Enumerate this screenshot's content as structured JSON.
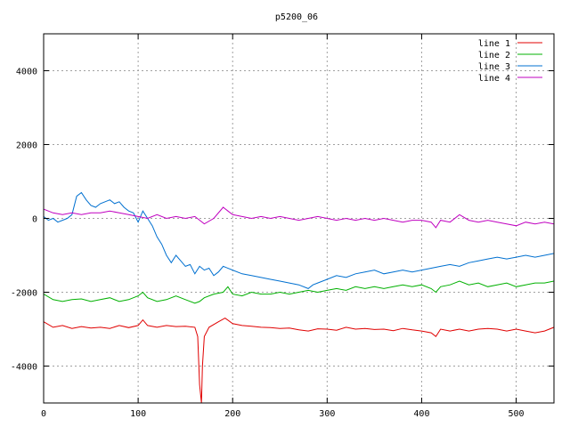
{
  "chart_data": {
    "type": "line",
    "title": "p5200_06",
    "xlabel": "",
    "ylabel": "",
    "xlim": [
      0,
      540
    ],
    "ylim": [
      -5000,
      5000
    ],
    "xticks": [
      0,
      100,
      200,
      300,
      400,
      500
    ],
    "yticks": [
      -4000,
      -2000,
      0,
      2000,
      4000
    ],
    "grid": true,
    "legend_position": "top-right",
    "series": [
      {
        "name": "line 1",
        "color": "#e00000",
        "points": [
          [
            0,
            -2800
          ],
          [
            10,
            -2950
          ],
          [
            20,
            -2900
          ],
          [
            30,
            -2980
          ],
          [
            40,
            -2930
          ],
          [
            50,
            -2970
          ],
          [
            60,
            -2950
          ],
          [
            70,
            -2980
          ],
          [
            80,
            -2900
          ],
          [
            90,
            -2960
          ],
          [
            100,
            -2900
          ],
          [
            105,
            -2750
          ],
          [
            110,
            -2900
          ],
          [
            120,
            -2950
          ],
          [
            130,
            -2900
          ],
          [
            140,
            -2930
          ],
          [
            150,
            -2920
          ],
          [
            160,
            -2950
          ],
          [
            163,
            -3200
          ],
          [
            165,
            -4500
          ],
          [
            167,
            -5000
          ],
          [
            168,
            -4000
          ],
          [
            170,
            -3200
          ],
          [
            175,
            -2950
          ],
          [
            185,
            -2800
          ],
          [
            192,
            -2700
          ],
          [
            200,
            -2850
          ],
          [
            210,
            -2900
          ],
          [
            220,
            -2920
          ],
          [
            230,
            -2950
          ],
          [
            240,
            -2960
          ],
          [
            250,
            -2980
          ],
          [
            260,
            -2970
          ],
          [
            270,
            -3020
          ],
          [
            280,
            -3050
          ],
          [
            290,
            -2990
          ],
          [
            300,
            -3000
          ],
          [
            310,
            -3030
          ],
          [
            320,
            -2950
          ],
          [
            330,
            -3000
          ],
          [
            340,
            -2980
          ],
          [
            350,
            -3010
          ],
          [
            360,
            -3000
          ],
          [
            370,
            -3040
          ],
          [
            380,
            -2980
          ],
          [
            390,
            -3020
          ],
          [
            400,
            -3050
          ],
          [
            410,
            -3100
          ],
          [
            415,
            -3200
          ],
          [
            420,
            -3000
          ],
          [
            430,
            -3050
          ],
          [
            440,
            -3000
          ],
          [
            450,
            -3050
          ],
          [
            460,
            -3000
          ],
          [
            470,
            -2980
          ],
          [
            480,
            -3000
          ],
          [
            490,
            -3050
          ],
          [
            500,
            -3000
          ],
          [
            510,
            -3050
          ],
          [
            520,
            -3100
          ],
          [
            530,
            -3050
          ],
          [
            540,
            -2950
          ]
        ]
      },
      {
        "name": "line 2",
        "color": "#00b000",
        "points": [
          [
            0,
            -2050
          ],
          [
            10,
            -2200
          ],
          [
            20,
            -2250
          ],
          [
            30,
            -2200
          ],
          [
            40,
            -2180
          ],
          [
            50,
            -2250
          ],
          [
            60,
            -2200
          ],
          [
            70,
            -2150
          ],
          [
            80,
            -2250
          ],
          [
            90,
            -2200
          ],
          [
            100,
            -2100
          ],
          [
            105,
            -2000
          ],
          [
            110,
            -2150
          ],
          [
            120,
            -2250
          ],
          [
            130,
            -2200
          ],
          [
            140,
            -2100
          ],
          [
            150,
            -2200
          ],
          [
            160,
            -2300
          ],
          [
            165,
            -2250
          ],
          [
            170,
            -2150
          ],
          [
            180,
            -2050
          ],
          [
            190,
            -2000
          ],
          [
            195,
            -1850
          ],
          [
            200,
            -2050
          ],
          [
            210,
            -2100
          ],
          [
            220,
            -2000
          ],
          [
            230,
            -2050
          ],
          [
            240,
            -2050
          ],
          [
            250,
            -2000
          ],
          [
            260,
            -2050
          ],
          [
            270,
            -2000
          ],
          [
            280,
            -1950
          ],
          [
            290,
            -2000
          ],
          [
            300,
            -1950
          ],
          [
            310,
            -1900
          ],
          [
            320,
            -1950
          ],
          [
            330,
            -1850
          ],
          [
            340,
            -1900
          ],
          [
            350,
            -1850
          ],
          [
            360,
            -1900
          ],
          [
            370,
            -1850
          ],
          [
            380,
            -1800
          ],
          [
            390,
            -1850
          ],
          [
            400,
            -1800
          ],
          [
            410,
            -1900
          ],
          [
            415,
            -2000
          ],
          [
            420,
            -1850
          ],
          [
            430,
            -1800
          ],
          [
            440,
            -1700
          ],
          [
            450,
            -1800
          ],
          [
            460,
            -1750
          ],
          [
            470,
            -1850
          ],
          [
            480,
            -1800
          ],
          [
            490,
            -1750
          ],
          [
            500,
            -1850
          ],
          [
            510,
            -1800
          ],
          [
            520,
            -1750
          ],
          [
            530,
            -1750
          ],
          [
            540,
            -1700
          ]
        ]
      },
      {
        "name": "line 3",
        "color": "#0070d0",
        "points": [
          [
            0,
            50
          ],
          [
            5,
            -50
          ],
          [
            10,
            0
          ],
          [
            15,
            -100
          ],
          [
            20,
            -50
          ],
          [
            25,
            0
          ],
          [
            30,
            100
          ],
          [
            35,
            600
          ],
          [
            40,
            700
          ],
          [
            45,
            500
          ],
          [
            50,
            350
          ],
          [
            55,
            300
          ],
          [
            60,
            400
          ],
          [
            65,
            450
          ],
          [
            70,
            500
          ],
          [
            75,
            400
          ],
          [
            80,
            450
          ],
          [
            85,
            300
          ],
          [
            90,
            200
          ],
          [
            95,
            150
          ],
          [
            100,
            -100
          ],
          [
            105,
            200
          ],
          [
            110,
            0
          ],
          [
            115,
            -200
          ],
          [
            120,
            -500
          ],
          [
            125,
            -700
          ],
          [
            130,
            -1000
          ],
          [
            135,
            -1200
          ],
          [
            140,
            -1000
          ],
          [
            145,
            -1150
          ],
          [
            150,
            -1300
          ],
          [
            155,
            -1250
          ],
          [
            160,
            -1500
          ],
          [
            165,
            -1300
          ],
          [
            170,
            -1400
          ],
          [
            175,
            -1350
          ],
          [
            180,
            -1550
          ],
          [
            185,
            -1450
          ],
          [
            190,
            -1300
          ],
          [
            200,
            -1400
          ],
          [
            210,
            -1500
          ],
          [
            220,
            -1550
          ],
          [
            230,
            -1600
          ],
          [
            240,
            -1650
          ],
          [
            250,
            -1700
          ],
          [
            260,
            -1750
          ],
          [
            270,
            -1800
          ],
          [
            280,
            -1900
          ],
          [
            285,
            -1800
          ],
          [
            290,
            -1750
          ],
          [
            300,
            -1650
          ],
          [
            310,
            -1550
          ],
          [
            320,
            -1600
          ],
          [
            330,
            -1500
          ],
          [
            340,
            -1450
          ],
          [
            350,
            -1400
          ],
          [
            360,
            -1500
          ],
          [
            370,
            -1450
          ],
          [
            380,
            -1400
          ],
          [
            390,
            -1450
          ],
          [
            400,
            -1400
          ],
          [
            410,
            -1350
          ],
          [
            420,
            -1300
          ],
          [
            430,
            -1250
          ],
          [
            440,
            -1300
          ],
          [
            450,
            -1200
          ],
          [
            460,
            -1150
          ],
          [
            470,
            -1100
          ],
          [
            480,
            -1050
          ],
          [
            490,
            -1100
          ],
          [
            500,
            -1050
          ],
          [
            510,
            -1000
          ],
          [
            520,
            -1050
          ],
          [
            530,
            -1000
          ],
          [
            540,
            -950
          ]
        ]
      },
      {
        "name": "line 4",
        "color": "#c000c0",
        "points": [
          [
            0,
            250
          ],
          [
            10,
            150
          ],
          [
            20,
            100
          ],
          [
            30,
            150
          ],
          [
            40,
            100
          ],
          [
            50,
            150
          ],
          [
            60,
            150
          ],
          [
            70,
            200
          ],
          [
            80,
            150
          ],
          [
            90,
            100
          ],
          [
            100,
            50
          ],
          [
            110,
            0
          ],
          [
            120,
            100
          ],
          [
            130,
            0
          ],
          [
            140,
            50
          ],
          [
            150,
            0
          ],
          [
            160,
            50
          ],
          [
            170,
            -150
          ],
          [
            180,
            0
          ],
          [
            190,
            300
          ],
          [
            195,
            200
          ],
          [
            200,
            100
          ],
          [
            210,
            50
          ],
          [
            220,
            0
          ],
          [
            230,
            50
          ],
          [
            240,
            0
          ],
          [
            250,
            50
          ],
          [
            260,
            0
          ],
          [
            270,
            -50
          ],
          [
            280,
            0
          ],
          [
            290,
            50
          ],
          [
            300,
            0
          ],
          [
            310,
            -50
          ],
          [
            320,
            0
          ],
          [
            330,
            -50
          ],
          [
            340,
            0
          ],
          [
            350,
            -50
          ],
          [
            360,
            0
          ],
          [
            370,
            -50
          ],
          [
            380,
            -100
          ],
          [
            390,
            -50
          ],
          [
            400,
            -50
          ],
          [
            410,
            -100
          ],
          [
            415,
            -250
          ],
          [
            420,
            -50
          ],
          [
            430,
            -100
          ],
          [
            440,
            100
          ],
          [
            450,
            -50
          ],
          [
            460,
            -100
          ],
          [
            470,
            -50
          ],
          [
            480,
            -100
          ],
          [
            490,
            -150
          ],
          [
            500,
            -200
          ],
          [
            510,
            -100
          ],
          [
            520,
            -150
          ],
          [
            530,
            -100
          ],
          [
            540,
            -150
          ]
        ]
      }
    ]
  }
}
